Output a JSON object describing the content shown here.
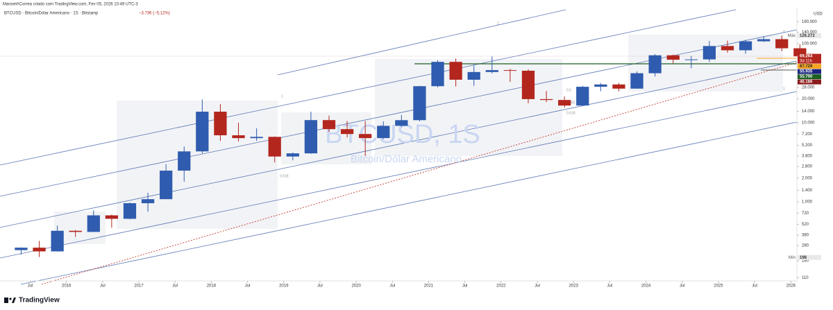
{
  "header": "ManoelACorrea criado com TradingView.com, Fev 05, 2026 10:49 UTC-3",
  "footer": "TradingView",
  "chart_data": {
    "type": "candlestick",
    "title": "BTCUSD · Bitcoin/Dólar Americano · 1S · Bitstamp",
    "change": "−3.736 (−5,12%)",
    "watermark": "BTCUSD, 1S",
    "watermark_subtitle": "Bitcoin/Dólar Americano",
    "currency": "USD",
    "log_scale": true,
    "up_color": "#2f5cae",
    "down_color": "#b3261e",
    "x": [
      "2015-04",
      "2015-07",
      "2015-10",
      "2016-01",
      "2016-04",
      "2016-07",
      "2016-10",
      "2017-01",
      "2017-04",
      "2017-07",
      "2017-10",
      "2018-01",
      "2018-04",
      "2018-07",
      "2018-10",
      "2019-01",
      "2019-04",
      "2019-07",
      "2019-10",
      "2020-01",
      "2020-04",
      "2020-07",
      "2020-10",
      "2021-01",
      "2021-04",
      "2021-07",
      "2021-10",
      "2022-01",
      "2022-04",
      "2022-07",
      "2022-10",
      "2023-01",
      "2023-04",
      "2023-07",
      "2023-10",
      "2024-01",
      "2024-04",
      "2024-07",
      "2024-10",
      "2025-01",
      "2025-04",
      "2025-07",
      "2025-10",
      "2026-01"
    ],
    "open": [
      245,
      263,
      236,
      430,
      416,
      674,
      610,
      960,
      1080,
      2480,
      4340,
      13800,
      6940,
      6390,
      6630,
      3740,
      4100,
      10800,
      8300,
      7200,
      6400,
      9140,
      10780,
      28990,
      58900,
      35000,
      43800,
      46300,
      45500,
      19900,
      19400,
      16500,
      28500,
      30500,
      27000,
      42300,
      71300,
      62700,
      63300,
      93400,
      82500,
      107100,
      114000,
      87500
    ],
    "high": [
      265,
      320,
      500,
      440,
      780,
      690,
      980,
      1300,
      2980,
      5000,
      19700,
      17200,
      9990,
      8500,
      6700,
      4200,
      13800,
      12300,
      10500,
      10500,
      10400,
      12500,
      29300,
      61800,
      64900,
      52900,
      69000,
      48200,
      47500,
      25200,
      21500,
      29200,
      31800,
      31800,
      44700,
      73800,
      72800,
      70000,
      108300,
      109500,
      111900,
      124400,
      126272,
      97900
    ],
    "low": [
      215,
      200,
      235,
      360,
      415,
      470,
      600,
      750,
      1080,
      1800,
      4100,
      5900,
      5800,
      5900,
      3150,
      3350,
      4050,
      7700,
      6500,
      3800,
      6200,
      8900,
      10400,
      28000,
      28800,
      29300,
      42000,
      32900,
      17600,
      18200,
      15500,
      16500,
      25000,
      24900,
      26900,
      38500,
      56500,
      49000,
      58900,
      76600,
      74400,
      105300,
      80500,
      67800
    ],
    "close": [
      263,
      236,
      430,
      416,
      674,
      610,
      960,
      1080,
      2480,
      4340,
      13800,
      6940,
      6390,
      6630,
      3740,
      4100,
      10800,
      8300,
      7200,
      6400,
      9140,
      10780,
      28990,
      58900,
      35000,
      43800,
      46300,
      45500,
      19900,
      19400,
      16500,
      28500,
      30500,
      27000,
      42300,
      71300,
      62700,
      63300,
      93400,
      82500,
      107100,
      114000,
      87500,
      69264
    ],
    "xlim": [
      "2015-02",
      "2026-02"
    ],
    "xticks": [
      {
        "value": "2015-07",
        "label": "Jul"
      },
      {
        "value": "2016-01",
        "label": "2016"
      },
      {
        "value": "2016-07",
        "label": "Jul"
      },
      {
        "value": "2017-01",
        "label": "2017"
      },
      {
        "value": "2017-07",
        "label": "Jul"
      },
      {
        "value": "2018-01",
        "label": "2018"
      },
      {
        "value": "2018-07",
        "label": "Jul"
      },
      {
        "value": "2019-01",
        "label": "2019"
      },
      {
        "value": "2019-07",
        "label": "Jul"
      },
      {
        "value": "2020-01",
        "label": "2020"
      },
      {
        "value": "2020-07",
        "label": "Jul"
      },
      {
        "value": "2021-01",
        "label": "2021"
      },
      {
        "value": "2021-07",
        "label": "Jul"
      },
      {
        "value": "2022-01",
        "label": "2022"
      },
      {
        "value": "2022-07",
        "label": "Jul"
      },
      {
        "value": "2023-01",
        "label": "2023"
      },
      {
        "value": "2023-07",
        "label": "Jul"
      },
      {
        "value": "2024-01",
        "label": "2024"
      },
      {
        "value": "2024-07",
        "label": "Jul"
      },
      {
        "value": "2025-01",
        "label": "2025"
      },
      {
        "value": "2025-07",
        "label": "Jul"
      },
      {
        "value": "2026-01",
        "label": "2026"
      }
    ],
    "ylim": [
      100,
      280000
    ],
    "yticks": [
      110,
      180,
      280,
      380,
      520,
      720,
      {
        "value": 1000,
        "label": "1.000"
      },
      {
        "value": 1400,
        "label": "1.400"
      },
      {
        "value": 2000,
        "label": "2.000"
      },
      {
        "value": 2800,
        "label": "2.800"
      },
      {
        "value": 3800,
        "label": "3.800"
      },
      {
        "value": 5200,
        "label": "5.200"
      },
      {
        "value": 7200,
        "label": "7.200"
      },
      {
        "value": 10000,
        "label": "10.000"
      },
      {
        "value": 14000,
        "label": "14.000"
      },
      {
        "value": 20000,
        "label": "20.000"
      },
      {
        "value": 28000,
        "label": "28.000"
      },
      {
        "value": 38000,
        "label": "38.000"
      },
      {
        "value": 52000,
        "label": "52.000"
      },
      {
        "value": 70000,
        "label": "70.000"
      },
      {
        "value": 100000,
        "label": "100.000"
      },
      {
        "value": 140000,
        "label": "140.000"
      },
      {
        "value": 190000,
        "label": "190.000"
      }
    ],
    "price_markers": [
      {
        "value": 126272,
        "label": "126.272",
        "tag": "Máx",
        "color": "#e8e8e8",
        "text_color": "#333333"
      },
      {
        "value": 69264,
        "label": "69.264",
        "sublabel": "3d 11h",
        "color": "#b3261e",
        "text_color": "#ffffff"
      },
      {
        "value": 67729,
        "label": "67.729",
        "color": "#f5a623",
        "text_color": "#222222"
      },
      {
        "value": 55935,
        "label": "55.935",
        "color": "#1a237e",
        "text_color": "#ffffff"
      },
      {
        "value": 55700,
        "label": "55.700",
        "color": "#1b5e20",
        "text_color": "#ffffff"
      },
      {
        "value": 46186,
        "label": "46.186",
        "color": "#8b1a1a",
        "text_color": "#ffffff"
      },
      {
        "value": 198,
        "label": "198",
        "tag": "Mín",
        "color": "#e8e8e8",
        "text_color": "#333333"
      }
    ],
    "fib_labels": [
      "2",
      "1",
      "0.618",
      "0.5",
      "0.382",
      "0.618",
      "0",
      "1"
    ]
  }
}
